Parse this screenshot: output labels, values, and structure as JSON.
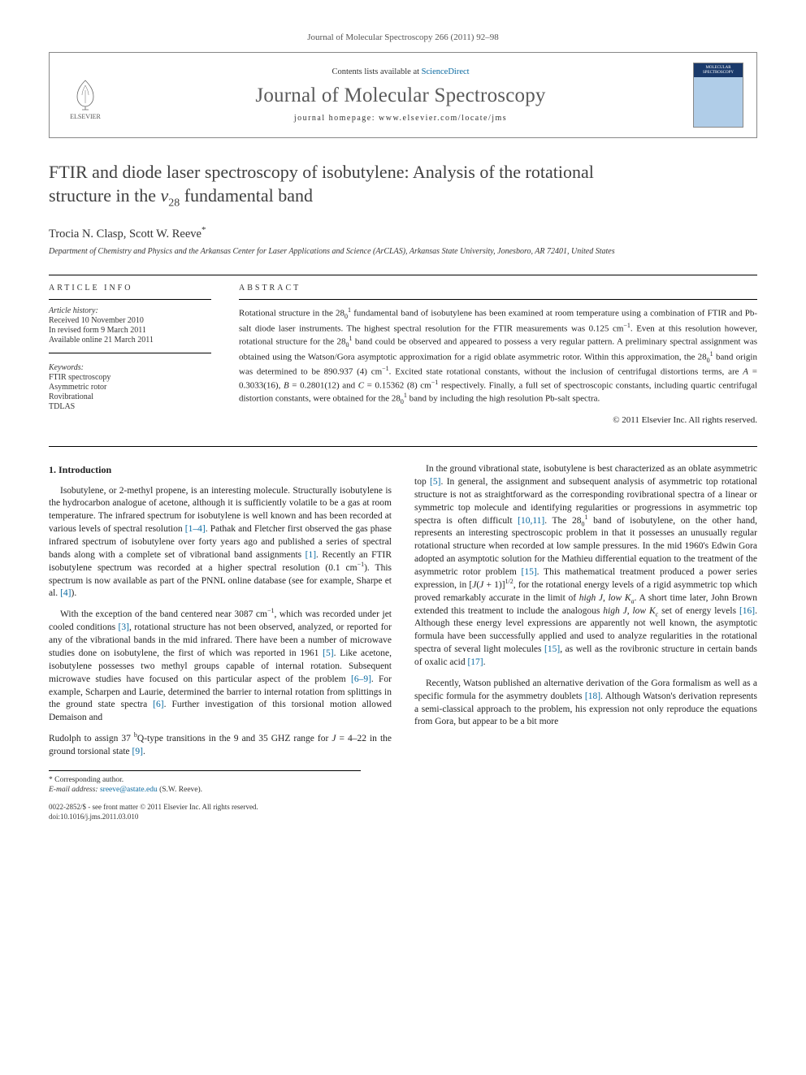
{
  "journal_ref": "Journal of Molecular Spectroscopy 266 (2011) 92–98",
  "header": {
    "contents_prefix": "Contents lists available at ",
    "contents_link": "ScienceDirect",
    "journal_name": "Journal of Molecular Spectroscopy",
    "homepage_prefix": "journal homepage: ",
    "homepage_url": "www.elsevier.com/locate/jms",
    "publisher_logo_label": "ELSEVIER"
  },
  "title": {
    "line1": "FTIR and diode laser spectroscopy of isobutylene: Analysis of the rotational",
    "line2_pre": "structure in the ",
    "line2_sym": "ν",
    "line2_sub": "28",
    "line2_post": " fundamental band"
  },
  "authors": "Trocia N. Clasp, Scott W. Reeve",
  "corr_mark": "*",
  "affiliation": "Department of Chemistry and Physics and the Arkansas Center for Laser Applications and Science (ArCLAS), Arkansas State University, Jonesboro, AR 72401, United States",
  "article_info": {
    "heading": "ARTICLE INFO",
    "history_head": "Article history:",
    "received": "Received 10 November 2010",
    "revised": "In revised form 9 March 2011",
    "online": "Available online 21 March 2011",
    "keywords_head": "Keywords:",
    "kw1": "FTIR spectroscopy",
    "kw2": "Asymmetric rotor",
    "kw3": "Rovibrational",
    "kw4": "TDLAS"
  },
  "abstract": {
    "heading": "ABSTRACT",
    "text_html": "Rotational structure in the 28<sub>0</sub><sup>1</sup> fundamental band of isobutylene has been examined at room temperature using a combination of FTIR and Pb-salt diode laser instruments. The highest spectral resolution for the FTIR measurements was 0.125 cm<sup>−1</sup>. Even at this resolution however, rotational structure for the 28<sub>0</sub><sup>1</sup> band could be observed and appeared to possess a very regular pattern. A preliminary spectral assignment was obtained using the Watson/Gora asymptotic approximation for a rigid oblate asymmetric rotor. Within this approximation, the 28<sub>0</sub><sup>1</sup> band origin was determined to be 890.937 (4) cm<sup>−1</sup>. Excited state rotational constants, without the inclusion of centrifugal distortions terms, are <i>A</i> = 0.3033(16), <i>B</i> = 0.2801(12) and <i>C</i> = 0.15362 (8) cm<sup>−1</sup> respectively. Finally, a full set of spectroscopic constants, including quartic centrifugal distortion constants, were obtained for the 28<sub>0</sub><sup>1</sup> band by including the high resolution Pb-salt spectra.",
    "copyright": "© 2011 Elsevier Inc. All rights reserved."
  },
  "body": {
    "section_heading": "1. Introduction",
    "p1_html": "Isobutylene, or 2-methyl propene, is an interesting molecule. Structurally isobutylene is the hydrocarbon analogue of acetone, although it is sufficiently volatile to be a gas at room temperature. The infrared spectrum for isobutylene is well known and has been recorded at various levels of spectral resolution <span class=\"ref\">[1–4]</span>. Pathak and Fletcher first observed the gas phase infrared spectrum of isobutylene over forty years ago and published a series of spectral bands along with a complete set of vibrational band assignments <span class=\"ref\">[1]</span>. Recently an FTIR isobutylene spectrum was recorded at a higher spectral resolution (0.1 cm<sup>−1</sup>). This spectrum is now available as part of the PNNL online database (see for example, Sharpe et al. <span class=\"ref\">[4]</span>).",
    "p2_html": "With the exception of the band centered near 3087 cm<sup>−1</sup>, which was recorded under jet cooled conditions <span class=\"ref\">[3]</span>, rotational structure has not been observed, analyzed, or reported for any of the vibrational bands in the mid infrared. There have been a number of microwave studies done on isobutylene, the first of which was reported in 1961 <span class=\"ref\">[5]</span>. Like acetone, isobutylene possesses two methyl groups capable of internal rotation. Subsequent microwave studies have focused on this particular aspect of the problem <span class=\"ref\">[6–9]</span>. For example, Scharpen and Laurie, determined the barrier to internal rotation from splittings in the ground state spectra <span class=\"ref\">[6]</span>. Further investigation of this torsional motion allowed Demaison and",
    "p3_html": "Rudolph to assign 37 <sup>b</sup>Q-type transitions in the 9 and 35 GHZ range for <i>J</i> = 4–22 in the ground torsional state <span class=\"ref\">[9]</span>.",
    "p4_html": "In the ground vibrational state, isobutylene is best characterized as an oblate asymmetric top <span class=\"ref\">[5]</span>. In general, the assignment and subsequent analysis of asymmetric top rotational structure is not as straightforward as the corresponding rovibrational spectra of a linear or symmetric top molecule and identifying regularities or progressions in asymmetric top spectra is often difficult <span class=\"ref\">[10,11]</span>. The 28<sub>0</sub><sup>1</sup> band of isobutylene, on the other hand, represents an interesting spectroscopic problem in that it possesses an unusually regular rotational structure when recorded at low sample pressures. In the mid 1960's Edwin Gora adopted an asymptotic solution for the Mathieu differential equation to the treatment of the asymmetric rotor problem <span class=\"ref\">[15]</span>. This mathematical treatment produced a power series expression, in [<i>J</i>(<i>J</i> + 1)]<sup>1/2</sup>, for the rotational energy levels of a rigid asymmetric top which proved remarkably accurate in the limit of <i>high J, low K<sub>a</sub></i>. A short time later, John Brown extended this treatment to include the analogous <i>high J, low K<sub>c</sub></i> set of energy levels <span class=\"ref\">[16]</span>. Although these energy level expressions are apparently not well known, the asymptotic formula have been successfully applied and used to analyze regularities in the rotational spectra of several light molecules <span class=\"ref\">[15]</span>, as well as the rovibronic structure in certain bands of oxalic acid <span class=\"ref\">[17]</span>.",
    "p5_html": "Recently, Watson published an alternative derivation of the Gora formalism as well as a specific formula for the asymmetry doublets <span class=\"ref\">[18]</span>. Although Watson's derivation represents a semi-classical approach to the problem, his expression not only reproduce the equations from Gora, but appear to be a bit more"
  },
  "footnotes": {
    "corr": "* Corresponding author.",
    "email_label": "E-mail address:",
    "email": "sreeve@astate.edu",
    "email_suffix": "(S.W. Reeve)."
  },
  "bottom": {
    "line1": "0022-2852/$ - see front matter © 2011 Elsevier Inc. All rights reserved.",
    "line2": "doi:10.1016/j.jms.2011.03.010"
  },
  "colors": {
    "link": "#0a6aa1",
    "text": "#222222",
    "muted": "#5a5a5a",
    "rule": "#000000"
  }
}
